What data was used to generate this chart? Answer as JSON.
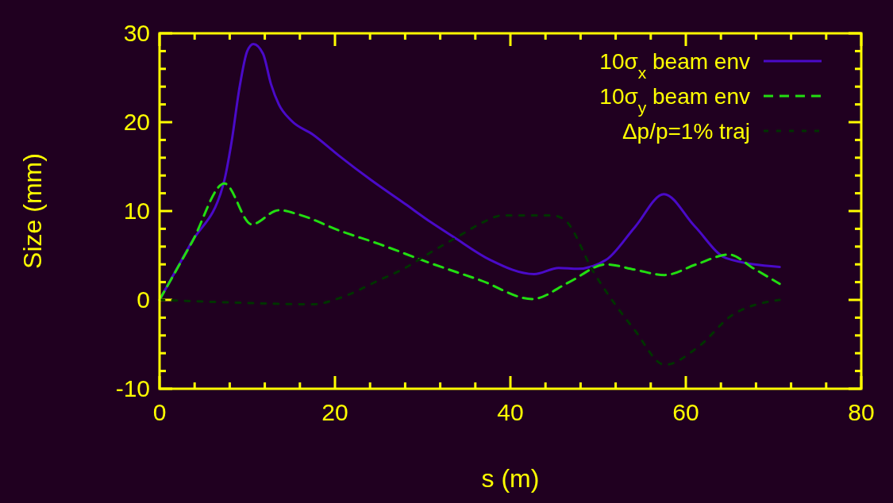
{
  "chart_data": {
    "type": "line",
    "xlabel": "s (m)",
    "ylabel": "Size (mm)",
    "xlim": [
      0,
      80
    ],
    "ylim": [
      -10,
      30
    ],
    "xticks": [
      0,
      {
        "value": 4,
        "label": null
      },
      {
        "value": 8,
        "label": null
      },
      {
        "value": 12,
        "label": null
      },
      {
        "value": 16,
        "label": null
      },
      20,
      {
        "value": 24,
        "label": null
      },
      {
        "value": 28,
        "label": null
      },
      {
        "value": 32,
        "label": null
      },
      {
        "value": 36,
        "label": null
      },
      40,
      {
        "value": 44,
        "label": null
      },
      {
        "value": 48,
        "label": null
      },
      {
        "value": 52,
        "label": null
      },
      {
        "value": 56,
        "label": null
      },
      60,
      {
        "value": 64,
        "label": null
      },
      {
        "value": 68,
        "label": null
      },
      {
        "value": 72,
        "label": null
      },
      {
        "value": 76,
        "label": null
      },
      80
    ],
    "yticks": [
      -10,
      {
        "value": -8,
        "label": null
      },
      {
        "value": -6,
        "label": null
      },
      {
        "value": -4,
        "label": null
      },
      {
        "value": -2,
        "label": null
      },
      0,
      {
        "value": 2,
        "label": null
      },
      {
        "value": 4,
        "label": null
      },
      {
        "value": 6,
        "label": null
      },
      {
        "value": 8,
        "label": null
      },
      10,
      {
        "value": 12,
        "label": null
      },
      {
        "value": 14,
        "label": null
      },
      {
        "value": 16,
        "label": null
      },
      {
        "value": 18,
        "label": null
      },
      20,
      {
        "value": 22,
        "label": null
      },
      {
        "value": 24,
        "label": null
      },
      {
        "value": 26,
        "label": null
      },
      {
        "value": 28,
        "label": null
      },
      30
    ],
    "grid": false,
    "legend": "top right",
    "marker": "none",
    "series": [
      {
        "name": "10σ$_{x}$ beam env",
        "color": "#4a0ac8",
        "line_style": "solid",
        "x": [
          0,
          3.6,
          7.3,
          8.2,
          9.1,
          10.0,
          10.7,
          11.8,
          12.7,
          13.6,
          15.0,
          17.5,
          20.5,
          24.1,
          28.0,
          31.0,
          33.5,
          37.7,
          42.7,
          45.5,
          47.7,
          50.9,
          54.2,
          57.5,
          61.0,
          64.6,
          70.7
        ],
        "values": [
          0,
          6.4,
          13.1,
          17.7,
          23.8,
          28.0,
          28.8,
          27.7,
          24.3,
          22.0,
          20.2,
          18.6,
          16.2,
          13.5,
          10.8,
          8.7,
          7.1,
          4.5,
          2.9,
          3.6,
          3.5,
          4.5,
          8.2,
          11.9,
          8.3,
          4.7,
          3.7
        ]
      },
      {
        "name": "10σ$_{y}$ beam env",
        "color": "#22dd11",
        "line_style": "dashed",
        "x": [
          0,
          3.7,
          7.4,
          10.5,
          13.6,
          15.9,
          20.5,
          25.0,
          30.7,
          36.6,
          42.5,
          46.7,
          50.9,
          54.2,
          57.6,
          61.2,
          64.9,
          67.8,
          70.7
        ],
        "values": [
          0,
          6.5,
          13.1,
          8.5,
          10.1,
          9.6,
          7.8,
          6.3,
          4.2,
          2.2,
          0.1,
          2.0,
          4.0,
          3.4,
          2.8,
          4.0,
          5.1,
          3.5,
          1.8
        ]
      },
      {
        "name": "Δp/p=1% traj",
        "color": "#003300",
        "line_style": "dotted",
        "x": [
          0,
          8.5,
          17.5,
          20.5,
          25.0,
          28.0,
          31.0,
          34.5,
          36.8,
          39.1,
          44.8,
          46.2,
          49.5,
          54.1,
          57.6,
          61.4,
          65.3,
          70.7
        ],
        "values": [
          0,
          -0.3,
          -0.5,
          0.2,
          2.2,
          3.6,
          5.4,
          7.4,
          8.7,
          9.5,
          9.5,
          9.0,
          3.1,
          -3.3,
          -7.3,
          -5.3,
          -1.7,
          0
        ]
      }
    ]
  }
}
